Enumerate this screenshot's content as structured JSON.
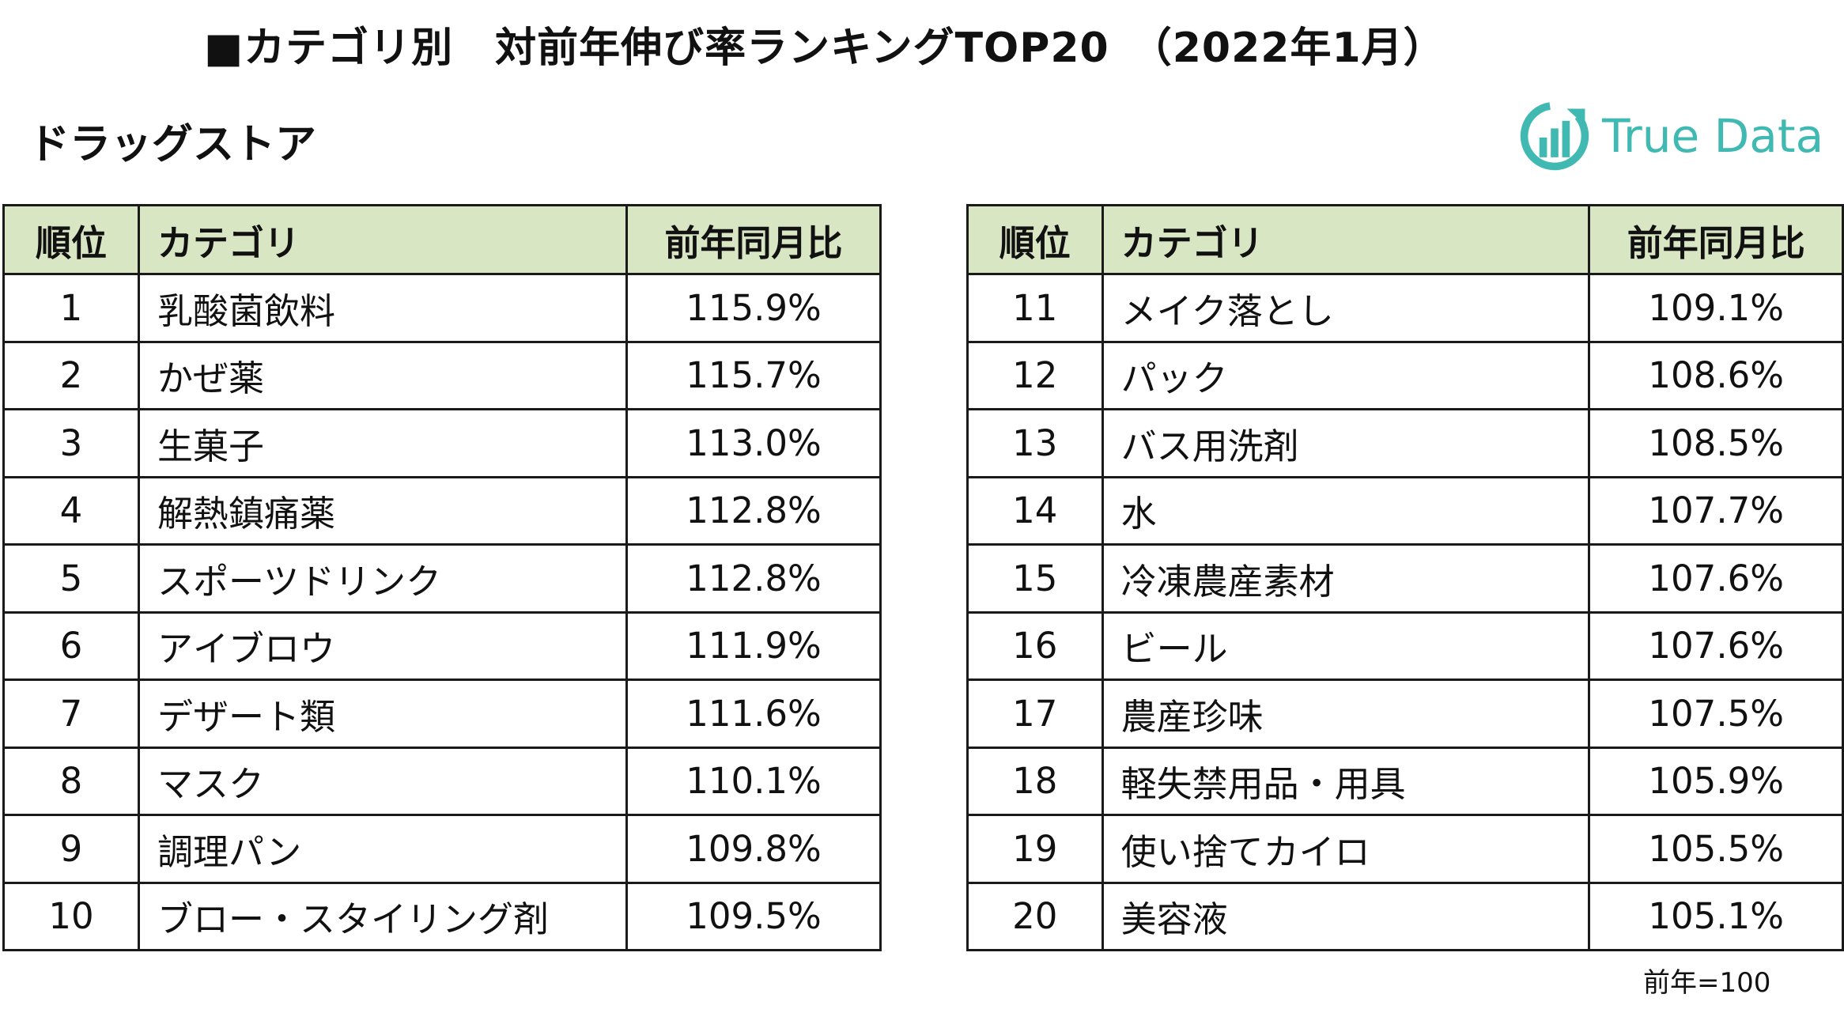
{
  "title": "■カテゴリ別　対前年伸び率ランキングTOP20　（2022年1月）",
  "subtitle": "ドラッグストア",
  "logo": {
    "text": "True Data",
    "color": "#3fb9b1"
  },
  "header_color": "#d9e6c4",
  "columns": {
    "rank": "順位",
    "category": "カテゴリ",
    "ratio": "前年同月比"
  },
  "left_rows": [
    {
      "rank": "1",
      "category": "乳酸菌飲料",
      "ratio": "115.9%"
    },
    {
      "rank": "2",
      "category": "かぜ薬",
      "ratio": "115.7%"
    },
    {
      "rank": "3",
      "category": "生菓子",
      "ratio": "113.0%"
    },
    {
      "rank": "4",
      "category": "解熱鎮痛薬",
      "ratio": "112.8%"
    },
    {
      "rank": "5",
      "category": "スポーツドリンク",
      "ratio": "112.8%"
    },
    {
      "rank": "6",
      "category": "アイブロウ",
      "ratio": "111.9%"
    },
    {
      "rank": "7",
      "category": "デザート類",
      "ratio": "111.6%"
    },
    {
      "rank": "8",
      "category": "マスク",
      "ratio": "110.1%"
    },
    {
      "rank": "9",
      "category": "調理パン",
      "ratio": "109.8%"
    },
    {
      "rank": "10",
      "category": "ブロー・スタイリング剤",
      "ratio": "109.5%"
    }
  ],
  "right_rows": [
    {
      "rank": "11",
      "category": "メイク落とし",
      "ratio": "109.1%"
    },
    {
      "rank": "12",
      "category": "パック",
      "ratio": "108.6%"
    },
    {
      "rank": "13",
      "category": "バス用洗剤",
      "ratio": "108.5%"
    },
    {
      "rank": "14",
      "category": "水",
      "ratio": "107.7%"
    },
    {
      "rank": "15",
      "category": "冷凍農産素材",
      "ratio": "107.6%"
    },
    {
      "rank": "16",
      "category": "ビール",
      "ratio": "107.6%"
    },
    {
      "rank": "17",
      "category": "農産珍味",
      "ratio": "107.5%"
    },
    {
      "rank": "18",
      "category": "軽失禁用品・用具",
      "ratio": "105.9%"
    },
    {
      "rank": "19",
      "category": "使い捨てカイロ",
      "ratio": "105.5%"
    },
    {
      "rank": "20",
      "category": "美容液",
      "ratio": "105.1%"
    }
  ],
  "footnote": "前年=100"
}
